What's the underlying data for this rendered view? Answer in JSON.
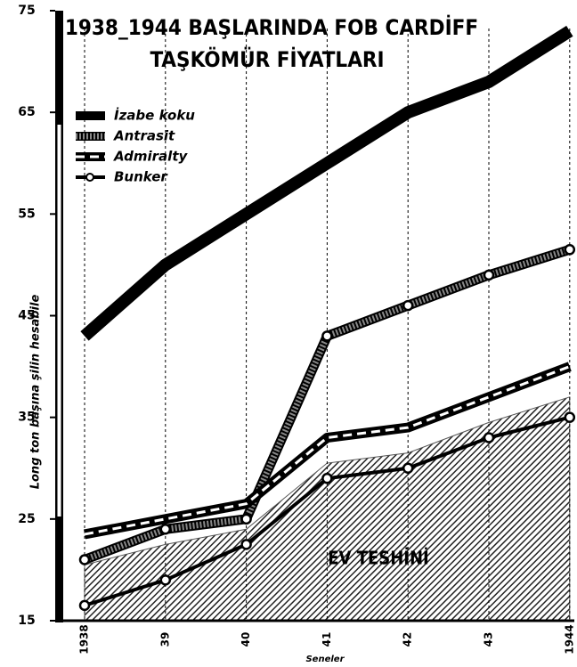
{
  "chart_data": {
    "type": "line",
    "title": "1938_1944 BAŞLARINDA FOB CARDİFF",
    "subtitle": "TAŞKÖMÜR FİYATLARI",
    "y_label": "Long ton başına şilin hesabile",
    "x_label": "Seneler",
    "annotation": "EV TESHİNİ",
    "categories": [
      "1938",
      "39",
      "40",
      "41",
      "42",
      "43",
      "1944"
    ],
    "ylim": [
      15,
      75
    ],
    "yticks": [
      15,
      25,
      35,
      45,
      55,
      65,
      75
    ],
    "area": {
      "color": "#555555",
      "values": [
        20.5,
        22.5,
        24,
        30.5,
        31.5,
        34.5,
        37
      ]
    },
    "series": [
      {
        "name": "İzabe koku",
        "color": "#000000",
        "values": [
          43,
          50,
          55,
          60,
          65,
          68,
          73
        ]
      },
      {
        "name": "Antrasit",
        "color": "#888888",
        "values": [
          21,
          24,
          25,
          43,
          46,
          49,
          51.5
        ]
      },
      {
        "name": "Admiralty",
        "color": "#000000",
        "values": [
          23.5,
          25,
          26.5,
          33,
          34,
          37,
          40
        ]
      },
      {
        "name": "Bunker",
        "color": "#000000",
        "values": [
          16.5,
          19,
          22.5,
          29,
          30,
          33,
          35
        ]
      }
    ]
  }
}
